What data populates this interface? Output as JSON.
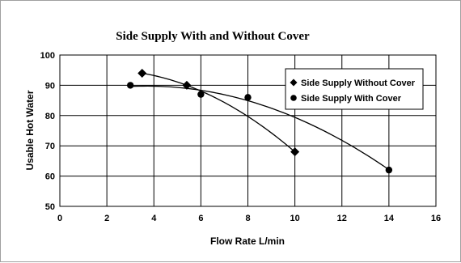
{
  "chart_data": {
    "type": "scatter",
    "title": "Side Supply With and Without Cover",
    "xlabel": "Flow Rate L/min",
    "ylabel": "Usable Hot Water",
    "xlim": [
      0,
      16
    ],
    "ylim": [
      50,
      100
    ],
    "x_ticks": [
      "0",
      "2",
      "4",
      "6",
      "8",
      "10",
      "12",
      "14",
      "16"
    ],
    "y_ticks": [
      "50",
      "60",
      "70",
      "80",
      "90",
      "100"
    ],
    "grid": "horizontal and vertical",
    "legend_position": "top-right",
    "trendlines": true,
    "series": [
      {
        "name": "Side Supply Without Cover",
        "marker": "diamond",
        "color": "#000000",
        "points": [
          {
            "x": 3.5,
            "y": 94
          },
          {
            "x": 5.4,
            "y": 90
          },
          {
            "x": 10,
            "y": 68
          }
        ]
      },
      {
        "name": "Side Supply With Cover",
        "marker": "circle",
        "color": "#000000",
        "points": [
          {
            "x": 3,
            "y": 90
          },
          {
            "x": 6,
            "y": 87
          },
          {
            "x": 8,
            "y": 86
          },
          {
            "x": 14,
            "y": 62
          }
        ]
      }
    ]
  }
}
